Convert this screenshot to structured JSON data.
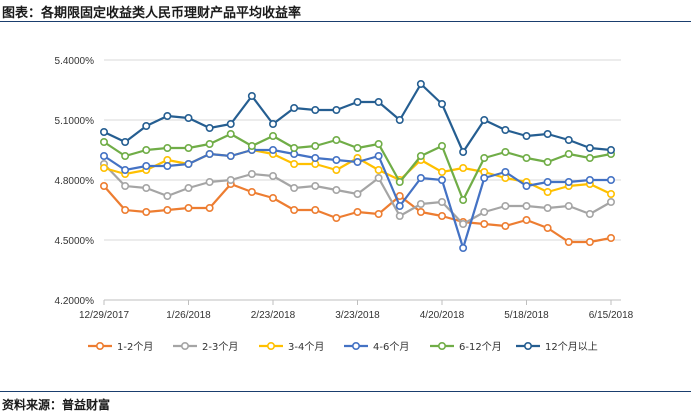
{
  "header": {
    "title": "图表：各期限固定收益类人民币理财产品平均收益率"
  },
  "footer": {
    "source": "资料来源：普益财富"
  },
  "chart_data": {
    "type": "line",
    "title": "",
    "xlabel": "",
    "ylabel": "",
    "ylim": [
      0.042,
      0.054
    ],
    "yticks": [
      "4.2000%",
      "4.5000%",
      "4.8000%",
      "5.1000%",
      "5.4000%"
    ],
    "ytick_values": [
      0.042,
      0.045,
      0.048,
      0.051,
      0.054
    ],
    "xtick_labels": [
      "12/29/2017",
      "1/26/2018",
      "2/23/2018",
      "3/23/2018",
      "4/20/2018",
      "5/18/2018",
      "6/15/2018"
    ],
    "xtick_index": [
      0,
      4,
      8,
      12,
      16,
      20,
      24
    ],
    "categories": [
      "12/29/2017",
      "1/5/2018",
      "1/12/2018",
      "1/19/2018",
      "1/26/2018",
      "2/2/2018",
      "2/9/2018",
      "2/16/2018",
      "2/23/2018",
      "3/2/2018",
      "3/9/2018",
      "3/16/2018",
      "3/23/2018",
      "3/30/2018",
      "4/6/2018",
      "4/13/2018",
      "4/20/2018",
      "4/27/2018",
      "5/4/2018",
      "5/11/2018",
      "5/18/2018",
      "5/25/2018",
      "6/1/2018",
      "6/8/2018",
      "6/15/2018"
    ],
    "grid": true,
    "legend_position": "bottom",
    "series": [
      {
        "name": "1-2个月",
        "color": "#ED7D31",
        "values": [
          4.77,
          4.65,
          4.64,
          4.65,
          4.66,
          4.66,
          4.78,
          4.74,
          4.71,
          4.65,
          4.65,
          4.61,
          4.64,
          4.63,
          4.72,
          4.64,
          4.62,
          4.59,
          4.58,
          4.57,
          4.6,
          4.56,
          4.49,
          4.49,
          4.51
        ]
      },
      {
        "name": "2-3个月",
        "color": "#A5A5A5",
        "values": [
          4.88,
          4.77,
          4.76,
          4.72,
          4.76,
          4.79,
          4.8,
          4.83,
          4.82,
          4.76,
          4.77,
          4.75,
          4.73,
          4.81,
          4.62,
          4.68,
          4.69,
          4.58,
          4.64,
          4.67,
          4.67,
          4.66,
          4.67,
          4.63,
          4.69
        ]
      },
      {
        "name": "3-4个月",
        "color": "#FFC000",
        "values": [
          4.86,
          4.83,
          4.85,
          4.9,
          4.88,
          4.93,
          4.92,
          4.95,
          4.93,
          4.88,
          4.88,
          4.85,
          4.91,
          4.85,
          4.8,
          4.9,
          4.84,
          4.86,
          4.84,
          4.81,
          4.79,
          4.74,
          4.77,
          4.78,
          4.73
        ]
      },
      {
        "name": "4-6个月",
        "color": "#4472C4",
        "values": [
          4.92,
          4.85,
          4.87,
          4.87,
          4.88,
          4.93,
          4.92,
          4.95,
          4.95,
          4.93,
          4.91,
          4.9,
          4.89,
          4.92,
          4.67,
          4.81,
          4.8,
          4.46,
          4.81,
          4.84,
          4.77,
          4.79,
          4.79,
          4.8,
          4.8
        ]
      },
      {
        "name": "6-12个月",
        "color": "#70AD47",
        "values": [
          4.99,
          4.92,
          4.95,
          4.96,
          4.96,
          4.98,
          5.03,
          4.97,
          5.02,
          4.96,
          4.97,
          5.0,
          4.96,
          4.98,
          4.79,
          4.92,
          4.97,
          4.7,
          4.91,
          4.94,
          4.91,
          4.89,
          4.93,
          4.91,
          4.93
        ]
      },
      {
        "name": "12个月以上",
        "color": "#255E91",
        "values": [
          5.04,
          4.99,
          5.07,
          5.12,
          5.11,
          5.06,
          5.08,
          5.22,
          5.08,
          5.16,
          5.15,
          5.15,
          5.19,
          5.19,
          5.1,
          5.28,
          5.18,
          4.94,
          5.1,
          5.05,
          5.02,
          5.03,
          5.0,
          4.96,
          4.95
        ]
      }
    ]
  }
}
